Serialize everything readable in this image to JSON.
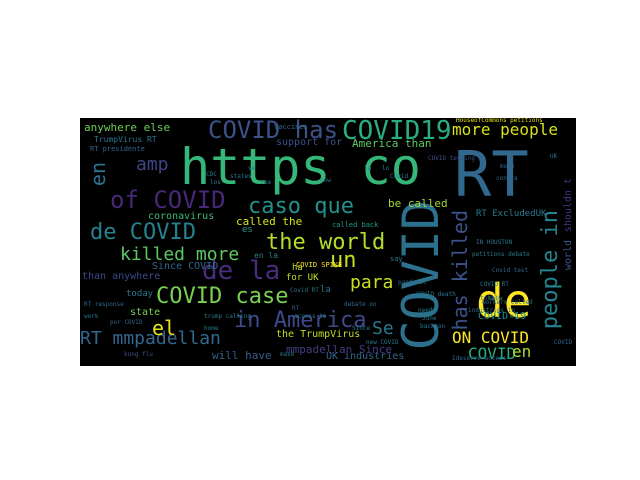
{
  "words": [
    {
      "text": "https co",
      "color": "#35b779"
    },
    {
      "text": "RT",
      "color": "#31688e"
    },
    {
      "text": "COVID",
      "color": "#2c728e"
    },
    {
      "text": "de",
      "color": "#fde725"
    },
    {
      "text": "COVID has",
      "color": "#3b528b"
    },
    {
      "text": "COVID19",
      "color": "#29af7f"
    },
    {
      "text": "of COVID",
      "color": "#482878"
    },
    {
      "text": "caso que",
      "color": "#21918c"
    },
    {
      "text": "de COVID",
      "color": "#26828e"
    },
    {
      "text": "the world",
      "color": "#b5de2b"
    },
    {
      "text": "killed more",
      "color": "#5ec962"
    },
    {
      "text": "de la",
      "color": "#472d7b"
    },
    {
      "text": "COVID case",
      "color": "#7ad151"
    },
    {
      "text": "in America",
      "color": "#3e4a89"
    },
    {
      "text": "more people",
      "color": "#d8e219"
    },
    {
      "text": "people in",
      "color": "#25858e"
    },
    {
      "text": "has killed",
      "color": "#3b528b"
    },
    {
      "text": "un",
      "color": "#c2df23"
    },
    {
      "text": "para",
      "color": "#c8e020"
    },
    {
      "text": "RT mmpadellan",
      "color": "#31688e"
    },
    {
      "text": "el",
      "color": "#e5e419"
    },
    {
      "text": "Se",
      "color": "#2a788e"
    },
    {
      "text": "ON COVID",
      "color": "#fde725"
    },
    {
      "text": "COVID",
      "color": "#27ad81"
    },
    {
      "text": "en",
      "color": "#2c728e"
    },
    {
      "text": "en",
      "color": "#addc30"
    },
    {
      "text": "amp",
      "color": "#414487"
    },
    {
      "text": "anywhere else",
      "color": "#6ece58"
    },
    {
      "text": "America than",
      "color": "#5ec962"
    },
    {
      "text": "support for",
      "color": "#3b528b"
    },
    {
      "text": "be called",
      "color": "#a0da39"
    },
    {
      "text": "coronavirus",
      "color": "#3dbc74"
    },
    {
      "text": "RT ExcludedUK",
      "color": "#2a788e"
    },
    {
      "text": "Since COVID",
      "color": "#31688e"
    },
    {
      "text": "than anywhere",
      "color": "#3e4a89"
    },
    {
      "text": "mmpadellan Since",
      "color": "#433e85"
    },
    {
      "text": "UK industries",
      "color": "#31688e"
    },
    {
      "text": "the TrumpVirus",
      "color": "#bddf26"
    },
    {
      "text": "will have",
      "color": "#355f8d"
    },
    {
      "text": "COVID 19",
      "color": "#238a8d"
    },
    {
      "text": "called the",
      "color": "#d8e219"
    },
    {
      "text": "state",
      "color": "#7ad151"
    },
    {
      "text": "today",
      "color": "#2a788e"
    },
    {
      "text": "for UK",
      "color": "#c2df23"
    },
    {
      "text": "es",
      "color": "#1f998a"
    },
    {
      "text": "shouldn t",
      "color": "#46327e"
    },
    {
      "text": "world",
      "color": "#3b528b"
    },
    {
      "text": "la",
      "color": "#2c728e"
    },
    {
      "text": "ha",
      "color": "#bddf26"
    },
    {
      "text": "en la",
      "color": "#2a788e"
    },
    {
      "text": "TrumpVirus RT",
      "color": "#2a788e"
    },
    {
      "text": "HouseofCommons petitions",
      "color": "#e5e419"
    },
    {
      "text": "COVID testing",
      "color": "#3b528b"
    },
    {
      "text": "called back",
      "color": "#1f9e89"
    },
    {
      "text": "Vaccines",
      "color": "#31688e"
    },
    {
      "text": "RT presidente",
      "color": "#31688e"
    },
    {
      "text": "COVID SPIKE",
      "color": "#fde725"
    },
    {
      "text": "debate on",
      "color": "#31688e"
    },
    {
      "text": "petitions debate",
      "color": "#2a788e"
    },
    {
      "text": "Covid test",
      "color": "#31688e"
    },
    {
      "text": "RT response",
      "color": "#31688e"
    },
    {
      "text": "por COVID",
      "color": "#31688e"
    },
    {
      "text": "kung flu",
      "color": "#3b528b"
    },
    {
      "text": "access to",
      "color": "#2a788e"
    },
    {
      "text": "workers called",
      "color": "#31688e"
    },
    {
      "text": "industries in",
      "color": "#31688e"
    },
    {
      "text": "contra",
      "color": "#31688e"
    },
    {
      "text": "Since",
      "color": "#2a788e"
    },
    {
      "text": "Ideserve access",
      "color": "#31688e"
    },
    {
      "text": "pandemic",
      "color": "#31688e"
    },
    {
      "text": "June",
      "color": "#2a788e"
    },
    {
      "text": "need",
      "color": "#2a788e"
    },
    {
      "text": "total",
      "color": "#31688e"
    },
    {
      "text": "say",
      "color": "#2a788e"
    },
    {
      "text": "Covid RT",
      "color": "#2a788e"
    },
    {
      "text": "COVID death",
      "color": "#2a788e"
    },
    {
      "text": "IN HOUSTON",
      "color": "#2a788e"
    },
    {
      "text": "back on",
      "color": "#2a788e"
    },
    {
      "text": "trump calling",
      "color": "#2a788e"
    },
    {
      "text": "RT",
      "color": "#3b528b"
    },
    {
      "text": "more",
      "color": "#31688e"
    },
    {
      "text": "states",
      "color": "#2a788e"
    },
    {
      "text": "CDC",
      "color": "#2a788e"
    },
    {
      "text": "work",
      "color": "#2a788e"
    },
    {
      "text": "home",
      "color": "#2a788e"
    },
    {
      "text": "now",
      "color": "#2a788e"
    },
    {
      "text": "COVID RT",
      "color": "#2a788e"
    },
    {
      "text": "know",
      "color": "#2a788e"
    },
    {
      "text": "COVID",
      "color": "#31688e"
    },
    {
      "text": "lo",
      "color": "#2a788e"
    },
    {
      "text": "UK",
      "color": "#2a788e"
    },
    {
      "text": "la",
      "color": "#2a788e"
    },
    {
      "text": "se",
      "color": "#2a788e"
    },
    {
      "text": "una",
      "color": "#2a788e"
    },
    {
      "text": "Covid",
      "color": "#2a788e"
    },
    {
      "text": "los",
      "color": "#2a788e"
    },
    {
      "text": "el",
      "color": "#2a788e"
    },
    {
      "text": "mask",
      "color": "#2a788e"
    },
    {
      "text": "new COVID",
      "color": "#2a788e"
    }
  ]
}
